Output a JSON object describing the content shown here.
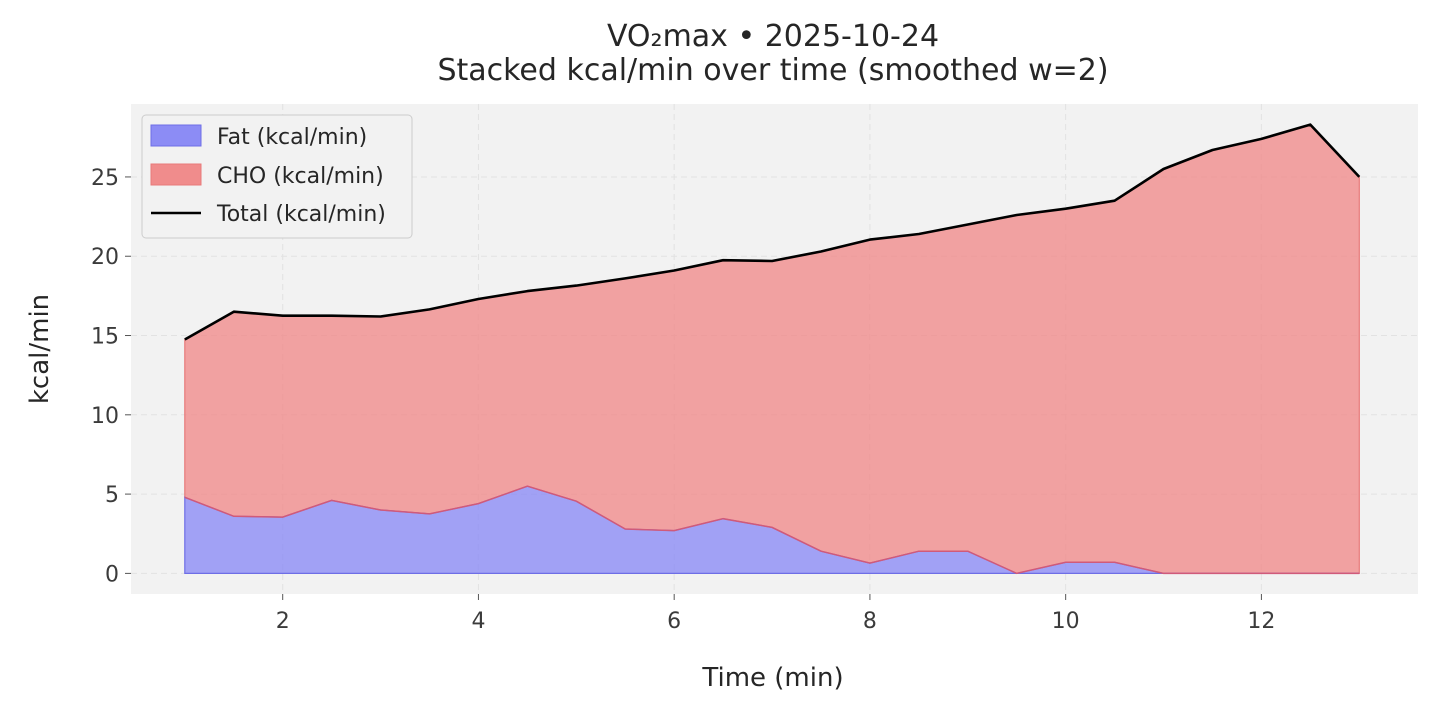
{
  "colors": {
    "fat_fill": "#8c8cf5",
    "fat_edge": "#6e6ee6",
    "cho_fill": "#f08c8c",
    "cho_edge": "#e87a7a",
    "total_line": "#000000",
    "plot_bg": "#f2f2f2"
  },
  "chart_data": {
    "type": "area",
    "stacked": true,
    "title": "VO₂max • 2025-10-24",
    "subtitle": "Stacked kcal/min over time (smoothed w=2)",
    "xlabel": "Time (min)",
    "ylabel": "kcal/min",
    "xlim": [
      0.45,
      13.6
    ],
    "ylim": [
      -1.3,
      29.6
    ],
    "xticks": [
      2,
      4,
      6,
      8,
      10,
      12
    ],
    "yticks": [
      0,
      5,
      10,
      15,
      20,
      25
    ],
    "grid": true,
    "legend": {
      "position": "top-left"
    },
    "x": [
      1,
      1.5,
      2,
      2.5,
      3,
      3.5,
      4,
      4.5,
      5,
      5.5,
      6,
      6.5,
      7,
      7.5,
      8,
      8.5,
      9,
      9.5,
      10,
      10.5,
      11,
      11.5,
      12,
      12.5,
      13
    ],
    "series": [
      {
        "name": "Fat (kcal/min)",
        "kind": "area",
        "values": [
          4.8,
          3.6,
          3.55,
          4.6,
          4.0,
          3.75,
          4.4,
          5.5,
          4.55,
          2.8,
          2.7,
          3.45,
          2.9,
          1.4,
          0.65,
          1.4,
          1.4,
          0.0,
          0.7,
          0.7,
          0.0,
          0.0,
          0.0,
          0.0,
          0.0
        ]
      },
      {
        "name": "CHO (kcal/min)",
        "kind": "area",
        "values": [
          9.95,
          12.9,
          12.7,
          11.65,
          12.2,
          12.9,
          12.9,
          12.3,
          13.6,
          15.8,
          16.4,
          16.3,
          16.8,
          18.9,
          20.4,
          20.0,
          20.6,
          22.6,
          22.3,
          22.8,
          25.5,
          26.7,
          27.4,
          28.3,
          25.0
        ]
      },
      {
        "name": "Total (kcal/min)",
        "kind": "line",
        "values": [
          14.75,
          16.5,
          16.25,
          16.25,
          16.2,
          16.65,
          17.3,
          17.8,
          18.15,
          18.6,
          19.1,
          19.75,
          19.7,
          20.3,
          21.05,
          21.4,
          22.0,
          22.6,
          23.0,
          23.5,
          25.5,
          26.7,
          27.4,
          28.3,
          25.0
        ]
      }
    ]
  }
}
